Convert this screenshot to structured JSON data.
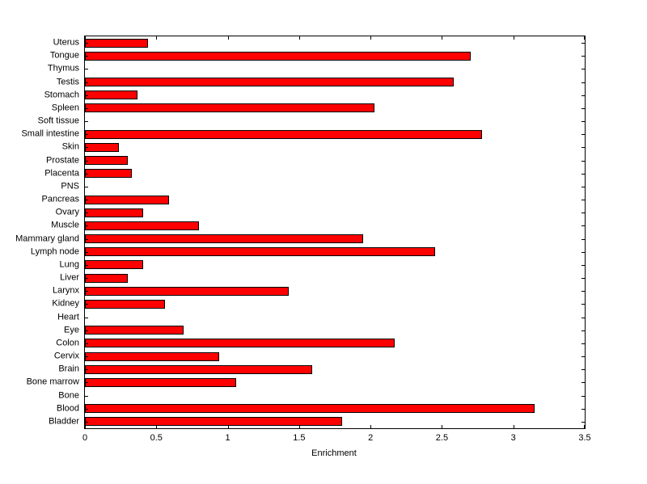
{
  "chart_data": {
    "type": "bar",
    "orientation": "horizontal",
    "title": "",
    "xlabel": "Enrichment",
    "ylabel": "",
    "xlim": [
      0,
      3.5
    ],
    "xticks": [
      0,
      0.5,
      1,
      1.5,
      2,
      2.5,
      3,
      3.5
    ],
    "xtick_labels": [
      "0",
      "0.5",
      "1",
      "1.5",
      "2",
      "2.5",
      "3",
      "3.5"
    ],
    "grid": false,
    "legend": false,
    "bar_color": "#ff0000",
    "bar_edge_color": "#000000",
    "categories": [
      "Uterus",
      "Tongue",
      "Thymus",
      "Testis",
      "Stomach",
      "Spleen",
      "Soft tissue",
      "Small intestine",
      "Skin",
      "Prostate",
      "Placenta",
      "PNS",
      "Pancreas",
      "Ovary",
      "Muscle",
      "Mammary gland",
      "Lymph node",
      "Lung",
      "Liver",
      "Larynx",
      "Kidney",
      "Heart",
      "Eye",
      "Colon",
      "Cervix",
      "Brain",
      "Bone marrow",
      "Bone",
      "Blood",
      "Bladder"
    ],
    "values": [
      0.44,
      2.7,
      0,
      2.58,
      0.37,
      2.03,
      0,
      2.78,
      0.24,
      0.3,
      0.33,
      0,
      0.59,
      0.41,
      0.8,
      1.95,
      2.45,
      0.41,
      0.3,
      1.43,
      0.56,
      0,
      0.69,
      2.17,
      0.94,
      1.59,
      1.06,
      0,
      3.15,
      1.8
    ]
  }
}
